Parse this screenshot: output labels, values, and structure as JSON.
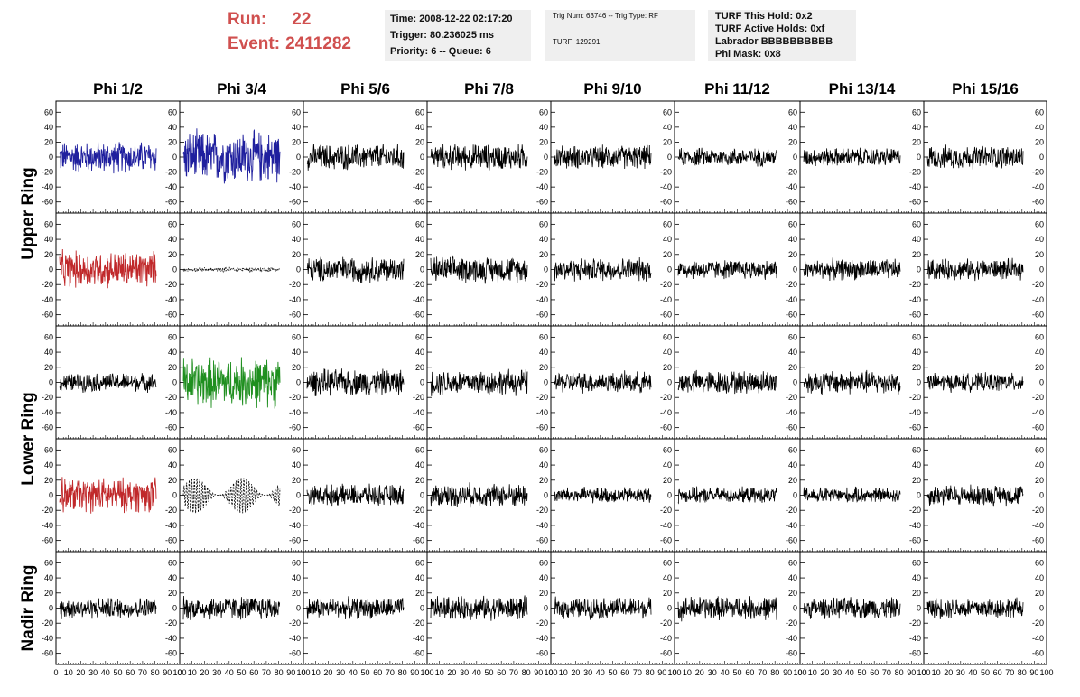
{
  "header": {
    "run_label": "Run:",
    "run_value": "22",
    "event_label": "Event:",
    "event_value": "2411282",
    "time": "Time: 2008-12-22 02:17:20",
    "trigger": "Trigger: 80.236025 ms",
    "priority": "Priority: 6 -- Queue: 6",
    "trig_num": "Trig Num: 63746 -- Trig Type: RF",
    "turf": "TURF: 129291",
    "turf_hold": "TURF This Hold: 0x2",
    "turf_active": "TURF Active Holds: 0xf",
    "labrador": "Labrador BBBBBBBBBB",
    "phi_mask": "Phi Mask: 0x8"
  },
  "colors": {
    "title_red": "#d0504f",
    "trace_black": "#000000",
    "trace_blue": "#1f1f9e",
    "trace_red": "#c0282a",
    "trace_green": "#1f8f1f",
    "info_bg": "#efefef"
  },
  "chart_data": {
    "type": "line",
    "columns": [
      "Phi 1/2",
      "Phi 3/4",
      "Phi 5/6",
      "Phi 7/8",
      "Phi 9/10",
      "Phi 11/12",
      "Phi 13/14",
      "Phi 15/16"
    ],
    "row_labels": [
      {
        "text": "Upper Ring",
        "rows": [
          0,
          1
        ]
      },
      {
        "text": "Lower Ring",
        "rows": [
          2,
          3
        ]
      },
      {
        "text": "Nadir Ring",
        "rows": [
          4,
          4
        ]
      }
    ],
    "xlim": [
      0,
      100
    ],
    "ylim": [
      -70,
      70
    ],
    "y_ticks": [
      -60,
      -40,
      -20,
      0,
      20,
      40,
      60
    ],
    "x_tick_labels": [
      "0",
      "10",
      "20",
      "30",
      "40",
      "50",
      "60",
      "70",
      "80",
      "90",
      "100"
    ],
    "x_tick_label_text": "0 10 20 30 40 50 60 70 80 90 100",
    "traces": [
      [
        {
          "color": "blue",
          "amp": 24,
          "style": "solid"
        },
        {
          "color": "blue",
          "amp": 40,
          "style": "solid"
        },
        {
          "color": "black",
          "amp": 20,
          "style": "solid"
        },
        {
          "color": "black",
          "amp": 20,
          "style": "solid"
        },
        {
          "color": "black",
          "amp": 18,
          "style": "solid"
        },
        {
          "color": "black",
          "amp": 14,
          "style": "solid"
        },
        {
          "color": "black",
          "amp": 14,
          "style": "solid"
        },
        {
          "color": "black",
          "amp": 18,
          "style": "solid"
        }
      ],
      [
        {
          "color": "red",
          "amp": 28,
          "style": "solid"
        },
        {
          "color": "black",
          "amp": 3,
          "style": "dotted"
        },
        {
          "color": "black",
          "amp": 20,
          "style": "solid"
        },
        {
          "color": "black",
          "amp": 20,
          "style": "solid"
        },
        {
          "color": "black",
          "amp": 18,
          "style": "solid"
        },
        {
          "color": "black",
          "amp": 15,
          "style": "solid"
        },
        {
          "color": "black",
          "amp": 16,
          "style": "solid"
        },
        {
          "color": "black",
          "amp": 16,
          "style": "solid"
        }
      ],
      [
        {
          "color": "black",
          "amp": 14,
          "style": "solid"
        },
        {
          "color": "green",
          "amp": 38,
          "style": "solid"
        },
        {
          "color": "black",
          "amp": 20,
          "style": "solid"
        },
        {
          "color": "black",
          "amp": 20,
          "style": "solid"
        },
        {
          "color": "black",
          "amp": 16,
          "style": "solid"
        },
        {
          "color": "black",
          "amp": 18,
          "style": "solid"
        },
        {
          "color": "black",
          "amp": 18,
          "style": "solid"
        },
        {
          "color": "black",
          "amp": 14,
          "style": "solid"
        }
      ],
      [
        {
          "color": "red",
          "amp": 26,
          "style": "solid"
        },
        {
          "color": "black",
          "amp": 24,
          "style": "dashed"
        },
        {
          "color": "black",
          "amp": 16,
          "style": "solid"
        },
        {
          "color": "black",
          "amp": 18,
          "style": "solid"
        },
        {
          "color": "black",
          "amp": 12,
          "style": "solid"
        },
        {
          "color": "black",
          "amp": 12,
          "style": "solid"
        },
        {
          "color": "black",
          "amp": 12,
          "style": "solid"
        },
        {
          "color": "black",
          "amp": 16,
          "style": "solid"
        }
      ],
      [
        {
          "color": "black",
          "amp": 16,
          "style": "solid"
        },
        {
          "color": "black",
          "amp": 18,
          "style": "solid"
        },
        {
          "color": "black",
          "amp": 16,
          "style": "solid"
        },
        {
          "color": "black",
          "amp": 18,
          "style": "solid"
        },
        {
          "color": "black",
          "amp": 16,
          "style": "solid"
        },
        {
          "color": "black",
          "amp": 18,
          "style": "solid"
        },
        {
          "color": "black",
          "amp": 16,
          "style": "solid"
        },
        {
          "color": "black",
          "amp": 16,
          "style": "solid"
        }
      ]
    ]
  }
}
